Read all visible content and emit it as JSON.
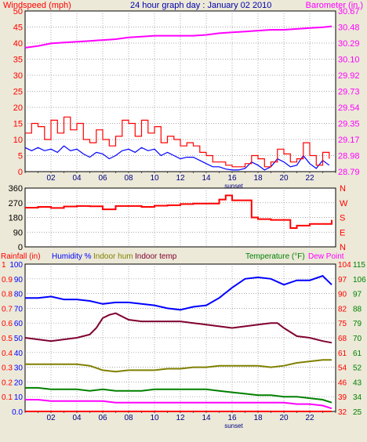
{
  "colors": {
    "background": "#ece9d8",
    "plot_bg": "#ffffff",
    "grid": "#8c8c8c",
    "wind_avg": "#0000ff",
    "wind_gust": "#ff0000",
    "barometer": "#ff00ff",
    "wind_dir": "#ff0000",
    "humidity": "#0000ff",
    "indoor_hum": "#808000",
    "indoor_temp": "#800030",
    "temperature": "#008000",
    "dew_point": "#ff00ff",
    "rainfall": "#ff0000",
    "title": "#0000aa",
    "axis_label": "#000080"
  },
  "chart_data": [
    {
      "id": "wind-baro",
      "type": "line",
      "title": "24 hour graph day : January 02 2010",
      "left_label": "Windspeed (mph)",
      "right_label": "Barometer (in.)",
      "x_tick_labels": [
        "02",
        "04",
        "06",
        "08",
        "10",
        "12",
        "14",
        "16",
        "18",
        "20",
        "22"
      ],
      "x_extra_label": "sunset",
      "y_left_ticks": [
        "50",
        "45",
        "40",
        "35",
        "30",
        "25",
        "20",
        "15",
        "10",
        "5",
        "0"
      ],
      "y_right_ticks": [
        "30.67",
        "30.48",
        "30.29",
        "30.10",
        "29.92",
        "29.73",
        "29.54",
        "29.35",
        "29.17",
        "28.98",
        "28.79"
      ],
      "ylim_left": [
        0,
        50
      ],
      "ylim_right": [
        28.79,
        30.67
      ],
      "xlim": [
        0,
        24
      ],
      "series": [
        {
          "name": "Windspeed (mph)",
          "axis": "left",
          "color_key": "wind_avg",
          "x": [
            0,
            0.5,
            1,
            1.5,
            2,
            2.5,
            3,
            3.5,
            4,
            4.5,
            5,
            5.5,
            6,
            6.5,
            7,
            7.5,
            8,
            8.5,
            9,
            9.5,
            10,
            10.5,
            11,
            11.5,
            12,
            12.5,
            13,
            13.5,
            14,
            14.5,
            15,
            15.5,
            16,
            16.5,
            17,
            17.5,
            18,
            18.5,
            19,
            19.5,
            20,
            20.5,
            21,
            21.5,
            22,
            22.5,
            23,
            23.5
          ],
          "values": [
            7.5,
            6.5,
            7.5,
            6.5,
            7,
            6,
            8,
            6.5,
            7,
            5.5,
            4.5,
            6,
            5.5,
            4,
            5,
            6.5,
            7,
            6,
            7.5,
            6.5,
            7,
            5,
            6,
            5,
            4,
            4.5,
            4.5,
            3.5,
            2.5,
            1.5,
            1.5,
            0.8,
            0.5,
            0.5,
            1,
            3,
            2,
            0.5,
            1.5,
            4,
            3,
            1.5,
            2,
            5,
            2.5,
            1,
            3.5,
            2
          ]
        },
        {
          "name": "Wind gust (mph)",
          "axis": "left",
          "color_key": "wind_gust",
          "x": [
            0,
            0.5,
            1,
            1.5,
            2,
            2.5,
            3,
            3.5,
            4,
            4.5,
            5,
            5.5,
            6,
            6.5,
            7,
            7.5,
            8,
            8.5,
            9,
            9.5,
            10,
            10.5,
            11,
            11.5,
            12,
            12.5,
            13,
            13.5,
            14,
            14.5,
            15,
            15.5,
            16,
            16.5,
            17,
            17.5,
            18,
            18.5,
            19,
            19.5,
            20,
            20.5,
            21,
            21.5,
            22,
            22.5,
            23,
            23.5
          ],
          "values": [
            12,
            15,
            14,
            10,
            16,
            12,
            17,
            13,
            15,
            10,
            9,
            13,
            10,
            8,
            11,
            16,
            15,
            11,
            16,
            12,
            14,
            9,
            11,
            10,
            8,
            9,
            8,
            6,
            5,
            3,
            3,
            2,
            1.5,
            1.5,
            2.5,
            5,
            4,
            1.5,
            3,
            7,
            5.5,
            3,
            4,
            9,
            5,
            2,
            6,
            4
          ]
        },
        {
          "name": "Barometer (in.)",
          "axis": "right",
          "color_key": "barometer",
          "x": [
            0,
            1,
            2,
            3,
            4,
            5,
            6,
            7,
            8,
            9,
            10,
            11,
            12,
            13,
            14,
            15,
            16,
            17,
            18,
            19,
            20,
            21,
            22,
            23,
            23.7
          ],
          "values": [
            30.24,
            30.26,
            30.29,
            30.3,
            30.31,
            30.32,
            30.33,
            30.34,
            30.36,
            30.37,
            30.38,
            30.38,
            30.38,
            30.38,
            30.39,
            30.41,
            30.42,
            30.43,
            30.44,
            30.45,
            30.45,
            30.46,
            30.47,
            30.48,
            30.49
          ]
        }
      ]
    },
    {
      "id": "wind-dir",
      "type": "line",
      "title": "",
      "x_tick_labels": [],
      "y_left_ticks": [
        "360",
        "270",
        "180",
        "90",
        "0"
      ],
      "y_right_ticks": [
        "N",
        "W",
        "S",
        "E",
        "N"
      ],
      "ylim_left": [
        0,
        360
      ],
      "xlim": [
        0,
        24
      ],
      "series": [
        {
          "name": "",
          "axis": "left",
          "color_key": "wind_dir",
          "x": [
            0,
            1,
            2,
            3,
            4,
            5,
            6,
            7,
            8,
            9,
            10,
            11,
            12,
            13,
            14,
            15,
            15.5,
            16,
            17,
            17.5,
            18,
            19,
            20,
            20.5,
            21,
            22,
            23,
            23.7
          ],
          "values": [
            240,
            245,
            238,
            247,
            250,
            248,
            230,
            250,
            250,
            245,
            252,
            255,
            262,
            265,
            265,
            290,
            315,
            285,
            285,
            180,
            170,
            165,
            165,
            115,
            130,
            140,
            140,
            165
          ]
        }
      ]
    },
    {
      "id": "hum-temp",
      "type": "line",
      "title": "",
      "labels": [
        "Rainfall (in)",
        "Humidity %",
        "Indoor hum",
        "Indoor temp",
        "Temperature (°F)",
        "Dew Point"
      ],
      "x_tick_labels": [
        "02",
        "04",
        "06",
        "08",
        "10",
        "12",
        "14",
        "16",
        "18",
        "20",
        "22"
      ],
      "x_extra_label": "sunset",
      "y_left_ticks": [
        "100",
        "90",
        "80",
        "70",
        "60",
        "50",
        "40",
        "30",
        "20",
        "10",
        "0.0"
      ],
      "y_left_ticks_rain": [
        "1",
        "0.9",
        "0.8",
        "0.7",
        "0.6",
        "0.5",
        "0.4",
        "0.3",
        "0.2",
        "0.1",
        ""
      ],
      "y_right_ticks": [
        "115",
        "106",
        "97",
        "88",
        "79",
        "70",
        "61",
        "52",
        "43",
        "34",
        "25"
      ],
      "y_right_ticks_alt": [
        "104",
        "97",
        "90",
        "82",
        "75",
        "68",
        "61",
        "54",
        "46",
        "39",
        "32"
      ],
      "ylim_left": [
        0,
        100
      ],
      "ylim_right": [
        25,
        115
      ],
      "xlim": [
        0,
        24
      ],
      "series": [
        {
          "name": "Humidity %",
          "axis": "left",
          "color_key": "humidity",
          "x": [
            0,
            1,
            2,
            3,
            4,
            5,
            6,
            7,
            8,
            9,
            10,
            11,
            12,
            13,
            14,
            15,
            16,
            17,
            18,
            19,
            20,
            21,
            22,
            23,
            23.7
          ],
          "values": [
            77,
            77,
            78,
            76,
            76,
            75,
            73,
            74,
            74,
            73,
            72,
            70,
            69,
            71,
            72,
            77,
            84,
            90,
            91,
            90,
            86,
            89,
            89,
            92,
            86
          ]
        },
        {
          "name": "Indoor temp",
          "axis": "right",
          "color_key": "indoor_temp",
          "x": [
            0,
            1,
            2,
            3,
            4,
            5,
            5.5,
            6,
            6.5,
            7,
            8,
            9,
            10,
            11,
            12,
            13,
            14,
            15,
            16,
            17,
            18,
            19,
            19.5,
            20,
            21,
            22,
            23,
            23.7
          ],
          "values": [
            70,
            69,
            68,
            69,
            70,
            72,
            76,
            82,
            84,
            85,
            81,
            80,
            80,
            80,
            80,
            79,
            78,
            77,
            76,
            77,
            78,
            79,
            79,
            76,
            71,
            70,
            68,
            67
          ]
        },
        {
          "name": "Indoor hum",
          "axis": "left",
          "color_key": "indoor_hum",
          "x": [
            0,
            1,
            2,
            3,
            4,
            5,
            6,
            7,
            8,
            9,
            10,
            11,
            12,
            13,
            14,
            15,
            16,
            17,
            18,
            19,
            20,
            21,
            22,
            23,
            23.7
          ],
          "values": [
            32,
            32,
            32,
            32,
            32,
            31,
            28,
            27,
            28,
            28,
            28,
            29,
            29,
            30,
            30,
            31,
            31,
            31,
            31,
            30,
            31,
            33,
            34,
            35,
            35
          ]
        },
        {
          "name": "Temperature (°F)",
          "axis": "left",
          "color_key": "temperature",
          "x": [
            0,
            1,
            2,
            3,
            4,
            5,
            6,
            7,
            8,
            9,
            10,
            11,
            12,
            13,
            14,
            15,
            16,
            17,
            18,
            19,
            20,
            21,
            22,
            23,
            23.7
          ],
          "values": [
            16,
            16,
            15,
            15,
            15,
            14,
            15,
            14,
            14,
            14,
            15,
            15,
            15,
            15,
            15,
            14,
            13,
            12,
            11,
            11,
            10,
            10,
            9,
            8,
            6
          ]
        },
        {
          "name": "Dew Point",
          "axis": "left",
          "color_key": "dew_point",
          "x": [
            0,
            1,
            2,
            3,
            4,
            5,
            6,
            7,
            8,
            9,
            10,
            11,
            12,
            13,
            14,
            15,
            16,
            17,
            18,
            19,
            20,
            21,
            22,
            23,
            23.7
          ],
          "values": [
            8,
            8,
            7,
            7,
            7,
            7,
            7,
            6,
            6,
            6,
            6,
            6,
            6,
            6,
            6,
            6,
            6,
            6,
            6,
            6,
            6,
            5,
            5,
            4,
            2
          ]
        },
        {
          "name": "Rainfall (in)",
          "axis": "left",
          "color_key": "rainfall",
          "x": [
            0,
            23.7
          ],
          "values": [
            0,
            0
          ]
        }
      ]
    }
  ]
}
